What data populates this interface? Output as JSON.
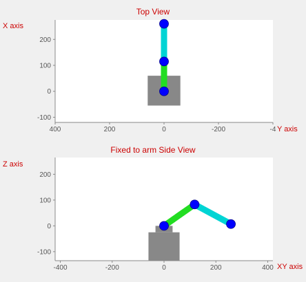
{
  "top_view": {
    "title": "Top View",
    "vertical_axis_name": "X axis",
    "horizontal_axis_name": "Y axis",
    "y_ticks": [
      "200",
      "100",
      "0",
      "-100"
    ],
    "x_ticks": [
      "400",
      "200",
      "0",
      "-200",
      "-4"
    ]
  },
  "side_view": {
    "title": "Fixed to arm Side View",
    "vertical_axis_name": "Z axis",
    "horizontal_axis_name": "XY axis",
    "y_ticks": [
      "200",
      "100",
      "0",
      "-100"
    ],
    "x_ticks": [
      "-400",
      "-200",
      "0",
      "200",
      "400"
    ]
  },
  "chart_data": [
    {
      "type": "line",
      "title": "Top View",
      "ylabel": "X axis",
      "xlabel": "Y axis",
      "x_reversed": true,
      "xlim": [
        400,
        -400
      ],
      "ylim": [
        -120,
        275
      ],
      "base_rect": {
        "x": [
          -60,
          60
        ],
        "y": [
          -55,
          60
        ],
        "color": "#888888"
      },
      "segments": [
        {
          "name": "",
          "x": [
            0,
            0
          ],
          "y": [
            0,
            115
          ],
          "color": "#22dd22"
        },
        {
          "name": "",
          "x": [
            0,
            0
          ],
          "y": [
            115,
            260
          ],
          "color": "#00d4d4"
        }
      ],
      "joints": {
        "x": [
          0,
          0,
          0
        ],
        "y": [
          0,
          115,
          260
        ],
        "color": "#0000ff"
      }
    },
    {
      "type": "line",
      "title": "Fixed to arm Side View",
      "ylabel": "Z axis",
      "xlabel": "XY axis",
      "xlim": [
        -420,
        420
      ],
      "ylim": [
        -135,
        265
      ],
      "base_rect": {
        "x": [
          -60,
          60
        ],
        "y": [
          -135,
          -25
        ],
        "color": "#888888"
      },
      "pedestal_rect": {
        "x": [
          -33,
          33
        ],
        "y": [
          -25,
          0
        ],
        "color": "#888888"
      },
      "segments": [
        {
          "name": "",
          "x": [
            0,
            118
          ],
          "y": [
            0,
            83
          ],
          "color": "#22dd22"
        },
        {
          "name": "",
          "x": [
            118,
            258
          ],
          "y": [
            83,
            7
          ],
          "color": "#00d4d4"
        }
      ],
      "joints": {
        "x": [
          0,
          118,
          258
        ],
        "y": [
          0,
          83,
          7
        ],
        "color": "#0000ff"
      }
    }
  ]
}
